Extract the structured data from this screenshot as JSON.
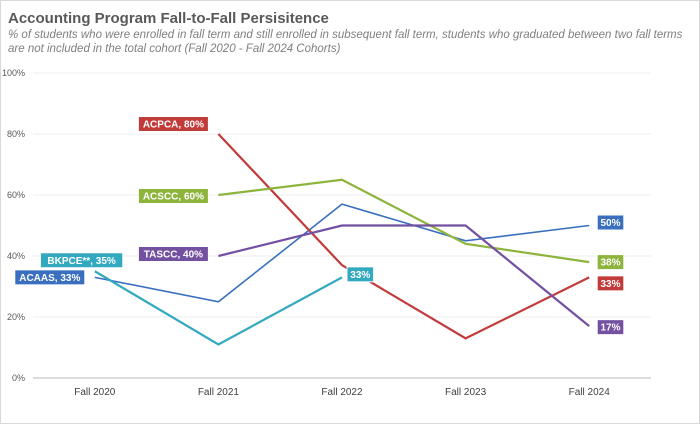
{
  "chart_data": {
    "type": "line",
    "title": "Accounting Program Fall-to-Fall Persisitence",
    "subtitle": "% of students who were enrolled in fall term and still enrolled in subsequent fall term, students who graduated between two fall terms are not included in the total cohort (Fall 2020 - Fall 2024 Cohorts)",
    "categories": [
      "Fall 2020",
      "Fall 2021",
      "Fall 2022",
      "Fall 2023",
      "Fall 2024"
    ],
    "yticks": [
      "0%",
      "20%",
      "40%",
      "60%",
      "80%",
      "100%"
    ],
    "ylim": [
      0,
      100
    ],
    "grid": true,
    "series": [
      {
        "name": "ACAAS",
        "color": "#3a6fbf",
        "values": [
          33,
          25,
          57,
          45,
          50
        ],
        "labels": [
          {
            "index": 0,
            "text": "ACAAS, 33%"
          },
          {
            "index": 4,
            "text": "50%"
          }
        ]
      },
      {
        "name": "ACPCA",
        "color": "#c23b3b",
        "values": [
          null,
          80,
          37,
          13,
          33
        ],
        "labels": [
          {
            "index": 1,
            "text": "ACPCA, 80%"
          },
          {
            "index": 4,
            "text": "33%"
          }
        ]
      },
      {
        "name": "ACSCC",
        "color": "#8db43d",
        "values": [
          null,
          60,
          65,
          44,
          38
        ],
        "labels": [
          {
            "index": 1,
            "text": "ACSCC, 60%"
          },
          {
            "index": 4,
            "text": "38%"
          }
        ]
      },
      {
        "name": "TASCC",
        "color": "#7350a0",
        "values": [
          null,
          40,
          50,
          50,
          17
        ],
        "labels": [
          {
            "index": 1,
            "text": "TASCC, 40%"
          },
          {
            "index": 4,
            "text": "17%"
          }
        ]
      },
      {
        "name": "BKPCE**",
        "color": "#33a9c0",
        "values": [
          35,
          11,
          33,
          null,
          null
        ],
        "labels": [
          {
            "index": 0,
            "text": "BKPCE**, 35%"
          },
          {
            "index": 2,
            "text": "33%"
          }
        ]
      }
    ]
  }
}
